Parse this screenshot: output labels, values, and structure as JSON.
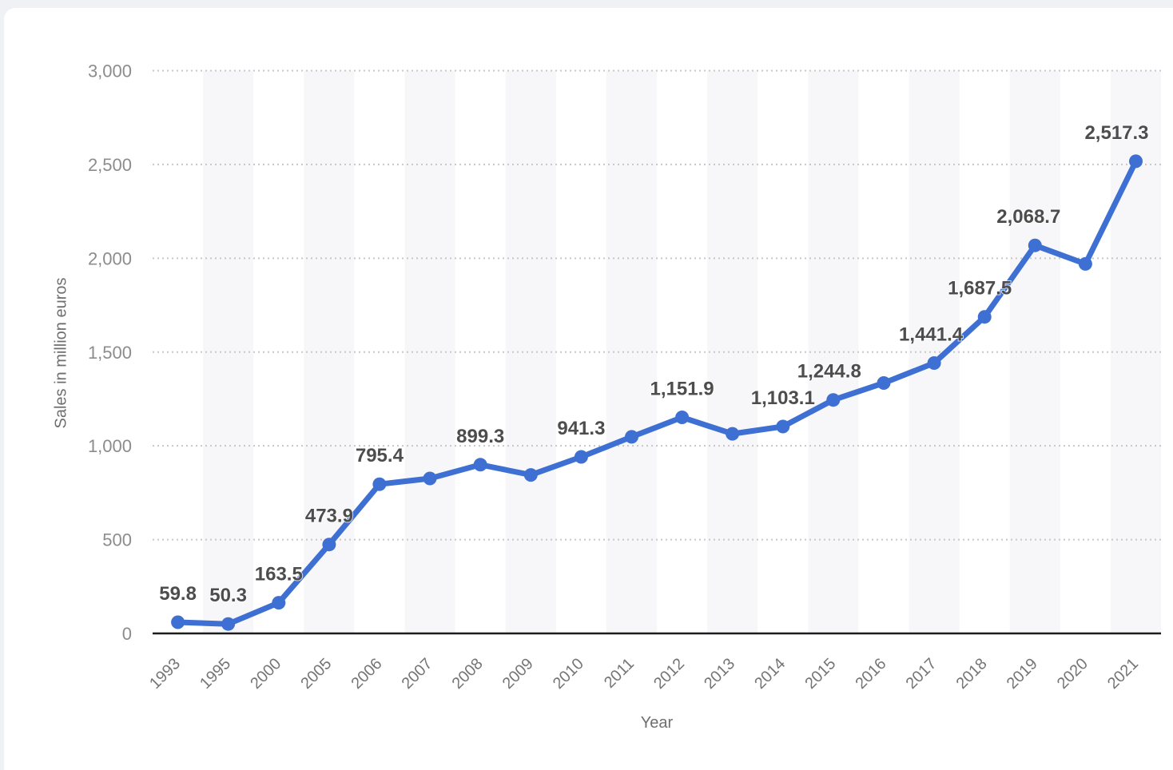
{
  "page": {
    "background_color": "#eff1f4",
    "card_color": "#ffffff"
  },
  "chart_data": {
    "type": "line",
    "title": "",
    "xlabel": "Year",
    "ylabel": "Sales in million euros",
    "ylim": [
      0,
      3000
    ],
    "ytick_values": [
      0,
      500,
      1000,
      1500,
      2000,
      2500,
      3000
    ],
    "ytick_labels": [
      "0",
      "500",
      "1,000",
      "1,500",
      "2,000",
      "2,500",
      "3,000"
    ],
    "grid": "horizontal-dotted",
    "legend": "none",
    "column_bands": "alternating, on 2nd/4th/... categories",
    "line_color": "#3e6fd2",
    "point_color": "#3e6fd2",
    "data_label_color": "#4d4d4d",
    "band_color": "#f7f7f9",
    "categories": [
      "1993",
      "1995",
      "2000",
      "2005",
      "2006",
      "2007",
      "2008",
      "2009",
      "2010",
      "2011",
      "2012",
      "2013",
      "2014",
      "2015",
      "2016",
      "2017",
      "2018",
      "2019",
      "2020",
      "2021"
    ],
    "points": [
      {
        "year": "1993",
        "value": 59.8,
        "label": "59.8"
      },
      {
        "year": "1995",
        "value": 50.3,
        "label": "50.3"
      },
      {
        "year": "2000",
        "value": 163.5,
        "label": "163.5"
      },
      {
        "year": "2005",
        "value": 473.9,
        "label": "473.9"
      },
      {
        "year": "2006",
        "value": 795.4,
        "label": "795.4"
      },
      {
        "year": "2007",
        "value": 826,
        "label": null
      },
      {
        "year": "2008",
        "value": 899.3,
        "label": "899.3"
      },
      {
        "year": "2009",
        "value": 845,
        "label": null
      },
      {
        "year": "2010",
        "value": 941.3,
        "label": "941.3"
      },
      {
        "year": "2011",
        "value": 1048,
        "label": null
      },
      {
        "year": "2012",
        "value": 1151.9,
        "label": "1,151.9"
      },
      {
        "year": "2013",
        "value": 1064,
        "label": null
      },
      {
        "year": "2014",
        "value": 1103.1,
        "label": "1,103.1"
      },
      {
        "year": "2015",
        "value": 1244.8,
        "label": "1,244.8",
        "label_dx": -5
      },
      {
        "year": "2016",
        "value": 1335,
        "label": null
      },
      {
        "year": "2017",
        "value": 1441.4,
        "label": "1,441.4",
        "label_dx": -4
      },
      {
        "year": "2018",
        "value": 1687.5,
        "label": "1,687.5",
        "label_dx": -6
      },
      {
        "year": "2019",
        "value": 2068.7,
        "label": "2,068.7",
        "label_dx": -8
      },
      {
        "year": "2020",
        "value": 1970,
        "label": null
      },
      {
        "year": "2021",
        "value": 2517.3,
        "label": "2,517.3",
        "label_dx": -24
      }
    ]
  }
}
